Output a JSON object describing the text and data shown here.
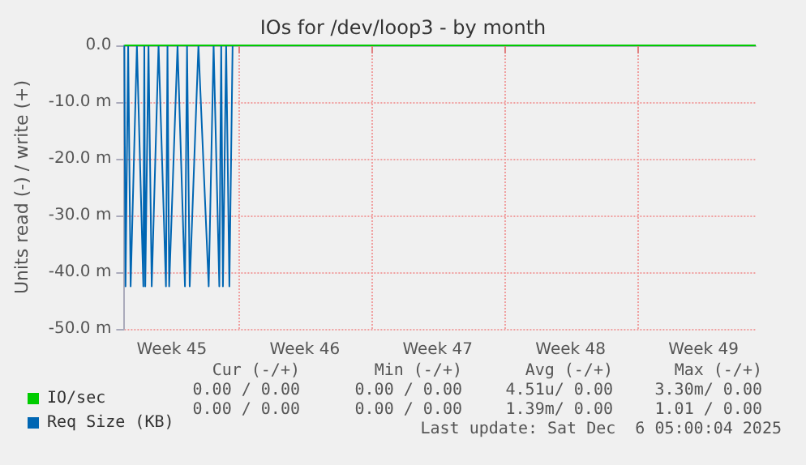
{
  "chart_data": {
    "type": "line",
    "title": "IOs for /dev/loop3 - by month",
    "ylabel": "Units read (-) / write (+)",
    "xlim": [
      "2025-11-04T00:00",
      "2025-12-07T06:00"
    ],
    "xticks": [
      {
        "value": "2025-11-06T12:00",
        "label": "Week 45"
      },
      {
        "value": "2025-11-10T00:00",
        "label": null
      },
      {
        "value": "2025-11-13T12:00",
        "label": "Week 46"
      },
      {
        "value": "2025-11-17T00:00",
        "label": null
      },
      {
        "value": "2025-11-20T12:00",
        "label": "Week 47"
      },
      {
        "value": "2025-11-24T00:00",
        "label": null
      },
      {
        "value": "2025-11-27T12:00",
        "label": "Week 48"
      },
      {
        "value": "2025-12-01T00:00",
        "label": null
      },
      {
        "value": "2025-12-04T12:00",
        "label": "Week 49"
      }
    ],
    "ylim": [
      -50,
      0
    ],
    "yticks": [
      {
        "value": -50,
        "label": "-50.0 m"
      },
      {
        "value": -40,
        "label": "-40.0 m"
      },
      {
        "value": -30,
        "label": "-30.0 m"
      },
      {
        "value": -20,
        "label": "-20.0 m"
      },
      {
        "value": -10,
        "label": "-10.0 m"
      },
      {
        "value": 0,
        "label": "0.0"
      }
    ],
    "grid": true,
    "legend": "bottom left",
    "marker": "none",
    "line_style": "solid",
    "series": [
      {
        "name": "Req Size (KB)",
        "color": "#0066b3",
        "x": [
          "2025-11-04T00:00",
          "2025-11-04T01:26",
          "2025-11-04T04:48",
          "2025-11-04T07:55",
          "2025-11-04T15:50",
          "2025-11-05T00:00",
          "2025-11-05T01:12",
          "2025-11-05T02:24",
          "2025-11-05T06:29",
          "2025-11-05T10:34",
          "2025-11-05T19:12",
          "2025-11-06T04:34",
          "2025-11-06T06:29",
          "2025-11-06T08:38",
          "2025-11-06T19:12",
          "2025-11-07T04:34",
          "2025-11-07T07:12",
          "2025-11-07T10:34",
          "2025-11-07T21:36",
          "2025-11-08T10:34",
          "2025-11-08T16:48",
          "2025-11-09T00:00",
          "2025-11-09T02:24",
          "2025-11-09T04:34",
          "2025-11-09T08:38",
          "2025-11-09T12:43",
          "2025-11-09T16:48"
        ],
        "values": [
          0,
          -42.5,
          0,
          -42.5,
          0,
          -42.5,
          0,
          -42.5,
          0,
          -42.5,
          0,
          -42.5,
          0,
          -42.5,
          0,
          -42.5,
          0,
          -42.5,
          0,
          -42.5,
          0,
          -42.5,
          0,
          -42.5,
          0,
          -42.5,
          0
        ]
      },
      {
        "name": "IO/sec",
        "color": "#00cc00",
        "x": [
          "2025-11-04T00:00",
          "2025-12-07T06:00"
        ],
        "values": [
          0,
          0
        ]
      }
    ],
    "annotations": [
      "Cur (-/+)",
      "Min (-/+)",
      "Avg (-/+)",
      "Max (-/+)",
      "0.00 / 0.00",
      "0.00 / 0.00",
      "4.51u/ 0.00",
      "3.30m/ 0.00",
      "0.00 / 0.00",
      "0.00 / 0.00",
      "1.39m/ 0.00",
      "1.01 / 0.00",
      "Last update: Sat Dec  6 05:00:04 2025"
    ]
  }
}
